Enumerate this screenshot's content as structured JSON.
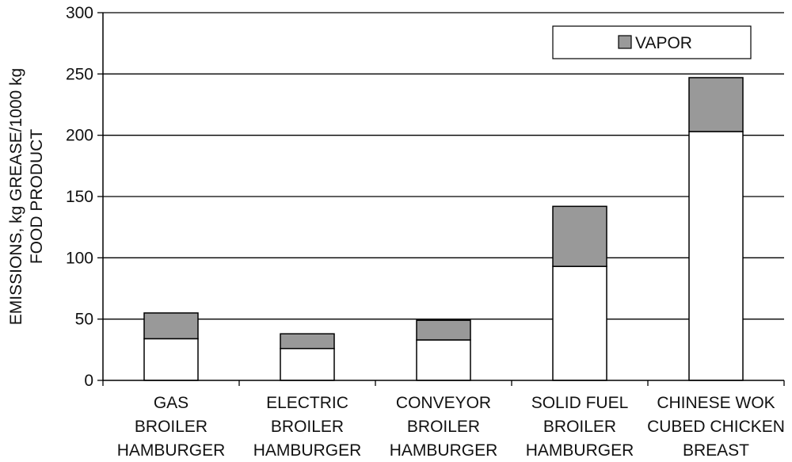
{
  "chart_data": {
    "type": "bar",
    "stacked": true,
    "categories": [
      [
        "GAS",
        "BROILER",
        "HAMBURGER"
      ],
      [
        "ELECTRIC",
        "BROILER",
        "HAMBURGER"
      ],
      [
        "CONVEYOR",
        "BROILER",
        "HAMBURGER"
      ],
      [
        "SOLID FUEL",
        "BROILER",
        "HAMBURGER"
      ],
      [
        "CHINESE WOK",
        "CUBED CHICKEN",
        "BREAST"
      ]
    ],
    "series": [
      {
        "name": "",
        "color": "#ffffff",
        "values": [
          34,
          26,
          33,
          93,
          203
        ]
      },
      {
        "name": "VAPOR",
        "color": "#999999",
        "values": [
          21,
          12,
          16,
          49,
          44
        ]
      }
    ],
    "ylabel_lines": [
      "EMISSIONS, kg GREASE/1000 kg",
      "FOOD PRODUCT"
    ],
    "xlabel": "",
    "ylim": [
      0,
      300
    ],
    "yticks": [
      0,
      50,
      100,
      150,
      200,
      250,
      300
    ],
    "grid": true,
    "legend": {
      "placement": "top-right",
      "entries": [
        "VAPOR"
      ]
    }
  }
}
